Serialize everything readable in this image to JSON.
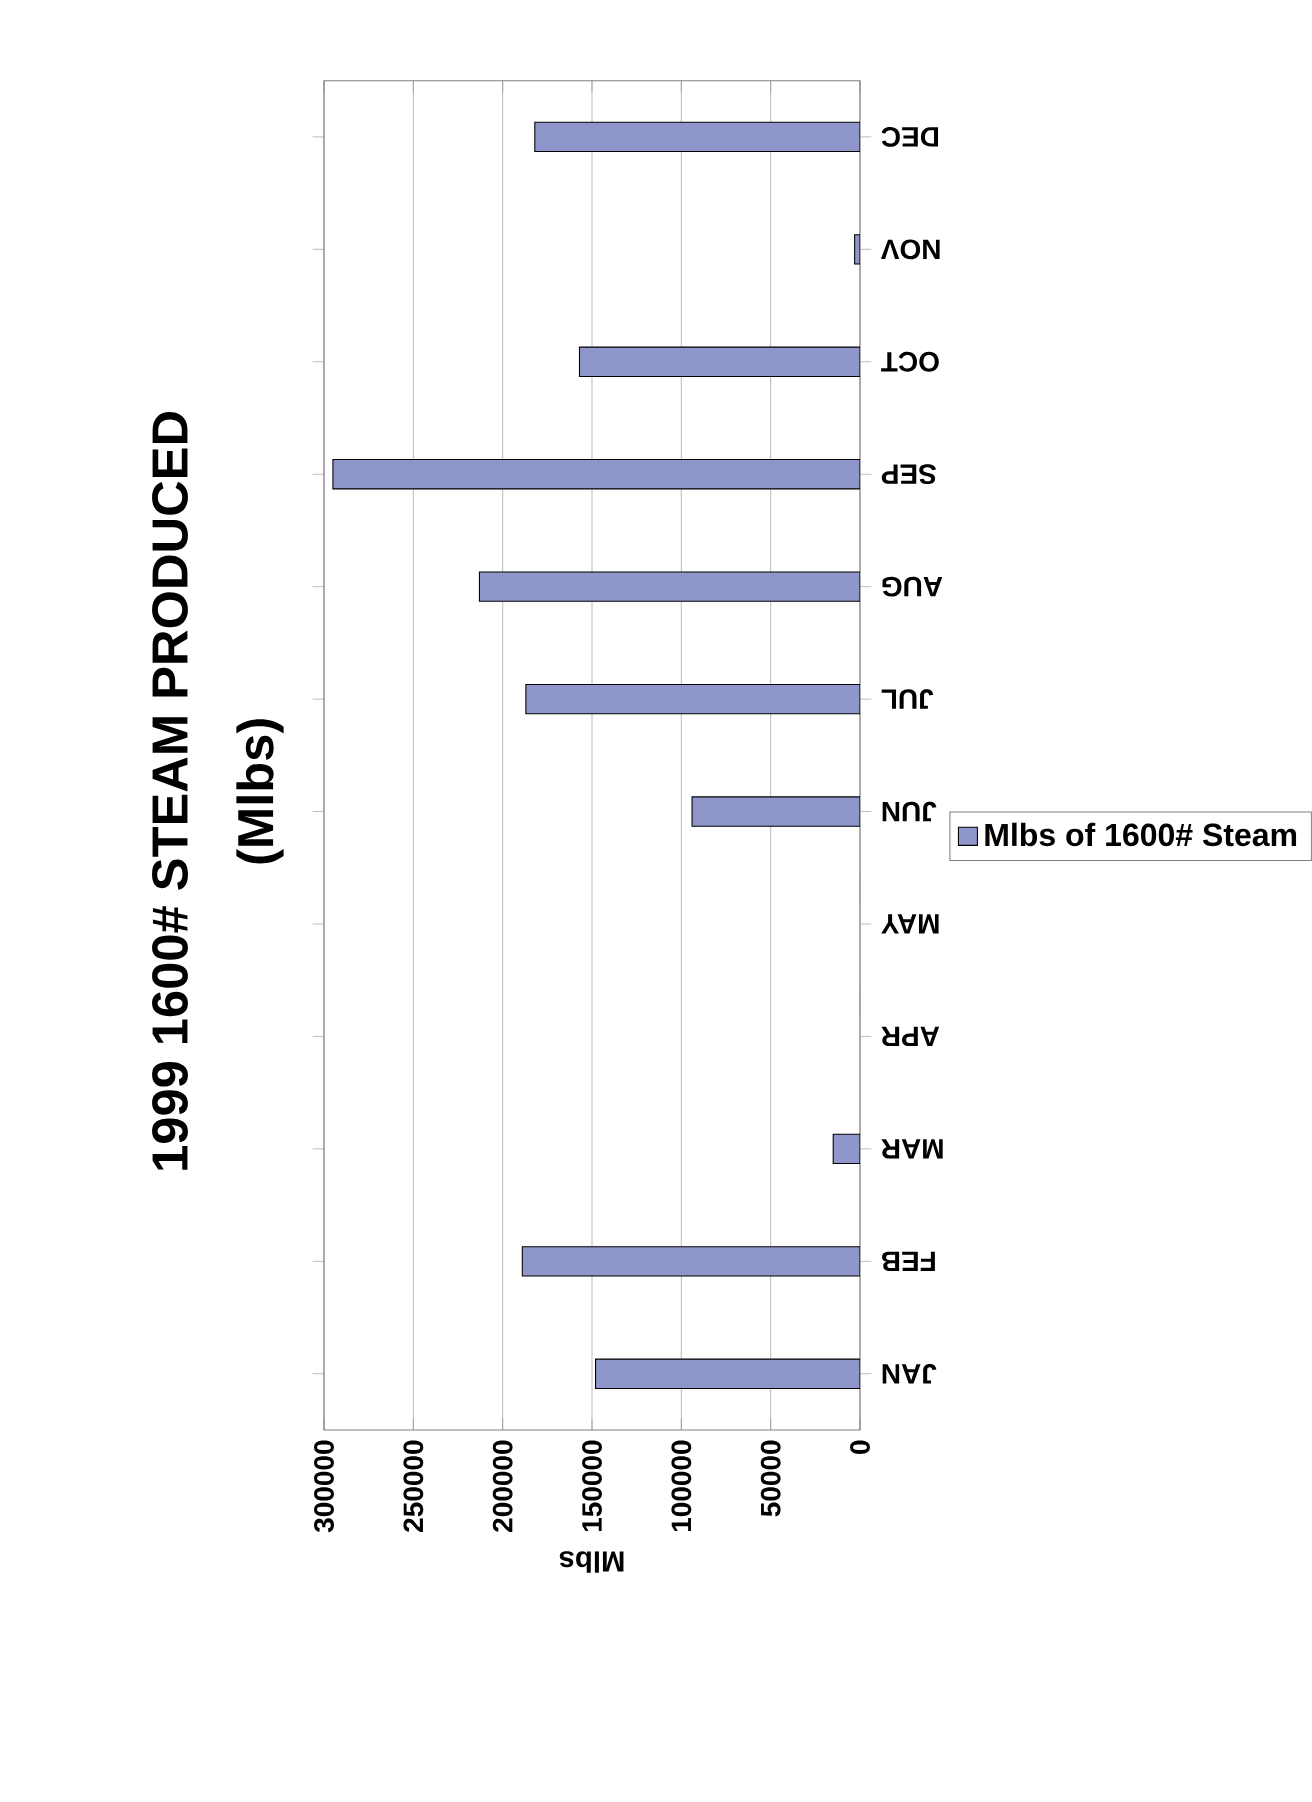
{
  "chart_data": {
    "type": "bar",
    "orientation": "horizontal",
    "title": "1999 1600# STEAM PRODUCED",
    "subtitle": "(Mlbs)",
    "xlabel": "Mlbs",
    "categories": [
      "DEC",
      "NOV",
      "OCT",
      "SEP",
      "AUG",
      "JUL",
      "JUN",
      "MAY",
      "APR",
      "MAR",
      "FEB",
      "JAN"
    ],
    "series": [
      {
        "name": "Mlbs of 1600# Steam",
        "color": "#8e96cc",
        "values": [
          182000,
          3000,
          157000,
          295000,
          213000,
          187000,
          94000,
          0,
          0,
          15000,
          189000,
          148000
        ]
      }
    ],
    "xlim": [
      300000,
      0
    ],
    "xticks": [
      0,
      50000,
      100000,
      150000,
      200000,
      250000,
      300000
    ],
    "grid": "x",
    "legend": "right"
  }
}
